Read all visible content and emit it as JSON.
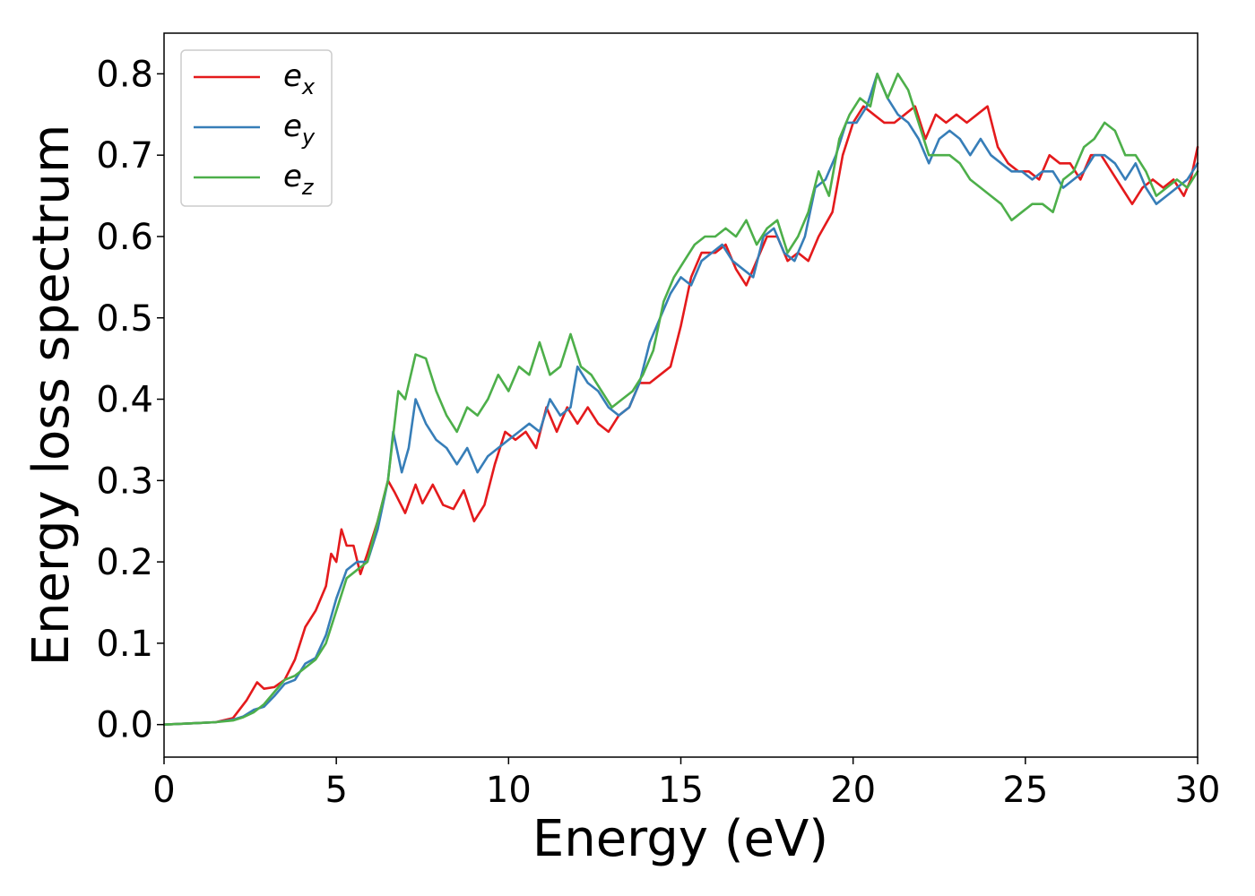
{
  "chart_data": {
    "type": "line",
    "xlabel": "Energy (eV)",
    "ylabel": "Energy loss spectrum",
    "xlim": [
      0,
      30
    ],
    "ylim": [
      -0.04,
      0.85
    ],
    "x_ticks": [
      "0",
      "5",
      "10",
      "15",
      "20",
      "25",
      "30"
    ],
    "y_ticks": [
      "0.0",
      "0.1",
      "0.2",
      "0.3",
      "0.4",
      "0.5",
      "0.6",
      "0.7",
      "0.8"
    ],
    "grid": false,
    "legend_position": "top-left",
    "series": [
      {
        "name": "e_x",
        "label_base": "e",
        "label_sub": "x",
        "color": "#e41a1c",
        "points": [
          [
            0,
            0
          ],
          [
            1,
            0.002
          ],
          [
            1.5,
            0.003
          ],
          [
            2,
            0.008
          ],
          [
            2.4,
            0.03
          ],
          [
            2.7,
            0.052
          ],
          [
            2.9,
            0.044
          ],
          [
            3.2,
            0.046
          ],
          [
            3.5,
            0.055
          ],
          [
            3.8,
            0.08
          ],
          [
            4.1,
            0.12
          ],
          [
            4.4,
            0.14
          ],
          [
            4.7,
            0.17
          ],
          [
            4.85,
            0.21
          ],
          [
            5.0,
            0.2
          ],
          [
            5.15,
            0.24
          ],
          [
            5.3,
            0.22
          ],
          [
            5.5,
            0.22
          ],
          [
            5.7,
            0.185
          ],
          [
            5.9,
            0.21
          ],
          [
            6.2,
            0.25
          ],
          [
            6.5,
            0.3
          ],
          [
            6.7,
            0.285
          ],
          [
            7.0,
            0.26
          ],
          [
            7.3,
            0.295
          ],
          [
            7.5,
            0.272
          ],
          [
            7.8,
            0.295
          ],
          [
            8.1,
            0.27
          ],
          [
            8.4,
            0.265
          ],
          [
            8.7,
            0.288
          ],
          [
            9.0,
            0.25
          ],
          [
            9.3,
            0.27
          ],
          [
            9.6,
            0.32
          ],
          [
            9.9,
            0.36
          ],
          [
            10.2,
            0.35
          ],
          [
            10.5,
            0.36
          ],
          [
            10.8,
            0.34
          ],
          [
            11.1,
            0.39
          ],
          [
            11.4,
            0.36
          ],
          [
            11.7,
            0.39
          ],
          [
            12.0,
            0.37
          ],
          [
            12.3,
            0.39
          ],
          [
            12.6,
            0.37
          ],
          [
            12.9,
            0.36
          ],
          [
            13.2,
            0.38
          ],
          [
            13.5,
            0.39
          ],
          [
            13.8,
            0.42
          ],
          [
            14.1,
            0.42
          ],
          [
            14.4,
            0.43
          ],
          [
            14.7,
            0.44
          ],
          [
            15.0,
            0.49
          ],
          [
            15.3,
            0.55
          ],
          [
            15.6,
            0.58
          ],
          [
            16.0,
            0.58
          ],
          [
            16.3,
            0.59
          ],
          [
            16.6,
            0.56
          ],
          [
            16.9,
            0.54
          ],
          [
            17.2,
            0.57
          ],
          [
            17.5,
            0.6
          ],
          [
            17.8,
            0.6
          ],
          [
            18.1,
            0.57
          ],
          [
            18.4,
            0.58
          ],
          [
            18.7,
            0.57
          ],
          [
            19.0,
            0.6
          ],
          [
            19.4,
            0.63
          ],
          [
            19.7,
            0.7
          ],
          [
            20.0,
            0.74
          ],
          [
            20.3,
            0.76
          ],
          [
            20.6,
            0.75
          ],
          [
            20.9,
            0.74
          ],
          [
            21.2,
            0.74
          ],
          [
            21.5,
            0.75
          ],
          [
            21.8,
            0.76
          ],
          [
            22.1,
            0.72
          ],
          [
            22.4,
            0.75
          ],
          [
            22.7,
            0.74
          ],
          [
            23.0,
            0.75
          ],
          [
            23.3,
            0.74
          ],
          [
            23.6,
            0.75
          ],
          [
            23.9,
            0.76
          ],
          [
            24.2,
            0.71
          ],
          [
            24.5,
            0.69
          ],
          [
            24.8,
            0.68
          ],
          [
            25.1,
            0.68
          ],
          [
            25.4,
            0.67
          ],
          [
            25.7,
            0.7
          ],
          [
            26.0,
            0.69
          ],
          [
            26.3,
            0.69
          ],
          [
            26.6,
            0.67
          ],
          [
            26.9,
            0.7
          ],
          [
            27.2,
            0.7
          ],
          [
            27.5,
            0.68
          ],
          [
            27.8,
            0.66
          ],
          [
            28.1,
            0.64
          ],
          [
            28.4,
            0.66
          ],
          [
            28.7,
            0.67
          ],
          [
            29.0,
            0.66
          ],
          [
            29.3,
            0.67
          ],
          [
            29.6,
            0.65
          ],
          [
            29.8,
            0.67
          ],
          [
            30,
            0.71
          ]
        ]
      },
      {
        "name": "e_y",
        "label_base": "e",
        "label_sub": "y",
        "color": "#377eb8",
        "points": [
          [
            0,
            0
          ],
          [
            1,
            0.002
          ],
          [
            1.5,
            0.003
          ],
          [
            2,
            0.006
          ],
          [
            2.3,
            0.01
          ],
          [
            2.6,
            0.018
          ],
          [
            2.9,
            0.022
          ],
          [
            3.2,
            0.035
          ],
          [
            3.5,
            0.05
          ],
          [
            3.8,
            0.055
          ],
          [
            4.1,
            0.075
          ],
          [
            4.4,
            0.082
          ],
          [
            4.7,
            0.11
          ],
          [
            5.0,
            0.155
          ],
          [
            5.3,
            0.19
          ],
          [
            5.6,
            0.2
          ],
          [
            5.9,
            0.2
          ],
          [
            6.2,
            0.24
          ],
          [
            6.5,
            0.3
          ],
          [
            6.65,
            0.36
          ],
          [
            6.9,
            0.31
          ],
          [
            7.1,
            0.34
          ],
          [
            7.3,
            0.4
          ],
          [
            7.6,
            0.37
          ],
          [
            7.9,
            0.35
          ],
          [
            8.2,
            0.34
          ],
          [
            8.5,
            0.32
          ],
          [
            8.8,
            0.34
          ],
          [
            9.1,
            0.31
          ],
          [
            9.4,
            0.33
          ],
          [
            9.7,
            0.34
          ],
          [
            10.0,
            0.35
          ],
          [
            10.3,
            0.36
          ],
          [
            10.6,
            0.37
          ],
          [
            10.9,
            0.36
          ],
          [
            11.2,
            0.4
          ],
          [
            11.5,
            0.38
          ],
          [
            11.8,
            0.39
          ],
          [
            12.0,
            0.44
          ],
          [
            12.3,
            0.42
          ],
          [
            12.6,
            0.41
          ],
          [
            12.9,
            0.39
          ],
          [
            13.2,
            0.38
          ],
          [
            13.5,
            0.39
          ],
          [
            13.8,
            0.42
          ],
          [
            14.1,
            0.47
          ],
          [
            14.4,
            0.5
          ],
          [
            14.7,
            0.53
          ],
          [
            15.0,
            0.55
          ],
          [
            15.3,
            0.54
          ],
          [
            15.6,
            0.57
          ],
          [
            15.9,
            0.58
          ],
          [
            16.2,
            0.59
          ],
          [
            16.5,
            0.57
          ],
          [
            16.8,
            0.56
          ],
          [
            17.1,
            0.55
          ],
          [
            17.4,
            0.6
          ],
          [
            17.7,
            0.61
          ],
          [
            18.0,
            0.58
          ],
          [
            18.3,
            0.57
          ],
          [
            18.6,
            0.6
          ],
          [
            18.9,
            0.66
          ],
          [
            19.2,
            0.67
          ],
          [
            19.5,
            0.7
          ],
          [
            19.8,
            0.74
          ],
          [
            20.1,
            0.74
          ],
          [
            20.4,
            0.76
          ],
          [
            20.7,
            0.8
          ],
          [
            21.0,
            0.77
          ],
          [
            21.3,
            0.75
          ],
          [
            21.6,
            0.74
          ],
          [
            21.9,
            0.72
          ],
          [
            22.2,
            0.69
          ],
          [
            22.5,
            0.72
          ],
          [
            22.8,
            0.73
          ],
          [
            23.1,
            0.72
          ],
          [
            23.4,
            0.7
          ],
          [
            23.7,
            0.72
          ],
          [
            24.0,
            0.7
          ],
          [
            24.3,
            0.69
          ],
          [
            24.6,
            0.68
          ],
          [
            24.9,
            0.68
          ],
          [
            25.2,
            0.67
          ],
          [
            25.5,
            0.68
          ],
          [
            25.8,
            0.68
          ],
          [
            26.1,
            0.66
          ],
          [
            26.4,
            0.67
          ],
          [
            26.7,
            0.68
          ],
          [
            27.0,
            0.7
          ],
          [
            27.3,
            0.7
          ],
          [
            27.6,
            0.69
          ],
          [
            27.9,
            0.67
          ],
          [
            28.2,
            0.69
          ],
          [
            28.5,
            0.66
          ],
          [
            28.8,
            0.64
          ],
          [
            29.1,
            0.65
          ],
          [
            29.4,
            0.66
          ],
          [
            29.7,
            0.67
          ],
          [
            30,
            0.69
          ]
        ]
      },
      {
        "name": "e_z",
        "label_base": "e",
        "label_sub": "z",
        "color": "#4daf4a",
        "points": [
          [
            0,
            0
          ],
          [
            1,
            0.002
          ],
          [
            1.5,
            0.003
          ],
          [
            2,
            0.005
          ],
          [
            2.3,
            0.009
          ],
          [
            2.6,
            0.015
          ],
          [
            2.9,
            0.025
          ],
          [
            3.2,
            0.04
          ],
          [
            3.5,
            0.055
          ],
          [
            3.8,
            0.06
          ],
          [
            4.1,
            0.07
          ],
          [
            4.4,
            0.08
          ],
          [
            4.7,
            0.1
          ],
          [
            5.0,
            0.14
          ],
          [
            5.3,
            0.18
          ],
          [
            5.6,
            0.19
          ],
          [
            5.9,
            0.2
          ],
          [
            6.2,
            0.25
          ],
          [
            6.5,
            0.3
          ],
          [
            6.8,
            0.41
          ],
          [
            7.0,
            0.4
          ],
          [
            7.3,
            0.455
          ],
          [
            7.6,
            0.45
          ],
          [
            7.9,
            0.41
          ],
          [
            8.2,
            0.38
          ],
          [
            8.5,
            0.36
          ],
          [
            8.8,
            0.39
          ],
          [
            9.1,
            0.38
          ],
          [
            9.4,
            0.4
          ],
          [
            9.7,
            0.43
          ],
          [
            10.0,
            0.41
          ],
          [
            10.3,
            0.44
          ],
          [
            10.6,
            0.43
          ],
          [
            10.9,
            0.47
          ],
          [
            11.2,
            0.43
          ],
          [
            11.5,
            0.44
          ],
          [
            11.8,
            0.48
          ],
          [
            12.1,
            0.44
          ],
          [
            12.4,
            0.43
          ],
          [
            12.7,
            0.41
          ],
          [
            13.0,
            0.39
          ],
          [
            13.3,
            0.4
          ],
          [
            13.6,
            0.41
          ],
          [
            13.9,
            0.43
          ],
          [
            14.2,
            0.46
          ],
          [
            14.5,
            0.52
          ],
          [
            14.8,
            0.55
          ],
          [
            15.1,
            0.57
          ],
          [
            15.4,
            0.59
          ],
          [
            15.7,
            0.6
          ],
          [
            16.0,
            0.6
          ],
          [
            16.3,
            0.61
          ],
          [
            16.6,
            0.6
          ],
          [
            16.9,
            0.62
          ],
          [
            17.2,
            0.59
          ],
          [
            17.5,
            0.61
          ],
          [
            17.8,
            0.62
          ],
          [
            18.1,
            0.58
          ],
          [
            18.4,
            0.6
          ],
          [
            18.7,
            0.63
          ],
          [
            19.0,
            0.68
          ],
          [
            19.3,
            0.65
          ],
          [
            19.6,
            0.72
          ],
          [
            19.9,
            0.75
          ],
          [
            20.2,
            0.77
          ],
          [
            20.5,
            0.76
          ],
          [
            20.7,
            0.8
          ],
          [
            21.0,
            0.77
          ],
          [
            21.3,
            0.8
          ],
          [
            21.6,
            0.78
          ],
          [
            21.9,
            0.74
          ],
          [
            22.2,
            0.7
          ],
          [
            22.5,
            0.7
          ],
          [
            22.8,
            0.7
          ],
          [
            23.1,
            0.69
          ],
          [
            23.4,
            0.67
          ],
          [
            23.7,
            0.66
          ],
          [
            24.0,
            0.65
          ],
          [
            24.3,
            0.64
          ],
          [
            24.6,
            0.62
          ],
          [
            24.9,
            0.63
          ],
          [
            25.2,
            0.64
          ],
          [
            25.5,
            0.64
          ],
          [
            25.8,
            0.63
          ],
          [
            26.1,
            0.67
          ],
          [
            26.4,
            0.68
          ],
          [
            26.7,
            0.71
          ],
          [
            27.0,
            0.72
          ],
          [
            27.3,
            0.74
          ],
          [
            27.6,
            0.73
          ],
          [
            27.9,
            0.7
          ],
          [
            28.2,
            0.7
          ],
          [
            28.5,
            0.68
          ],
          [
            28.8,
            0.65
          ],
          [
            29.1,
            0.66
          ],
          [
            29.4,
            0.67
          ],
          [
            29.7,
            0.66
          ],
          [
            30,
            0.68
          ]
        ]
      }
    ]
  }
}
